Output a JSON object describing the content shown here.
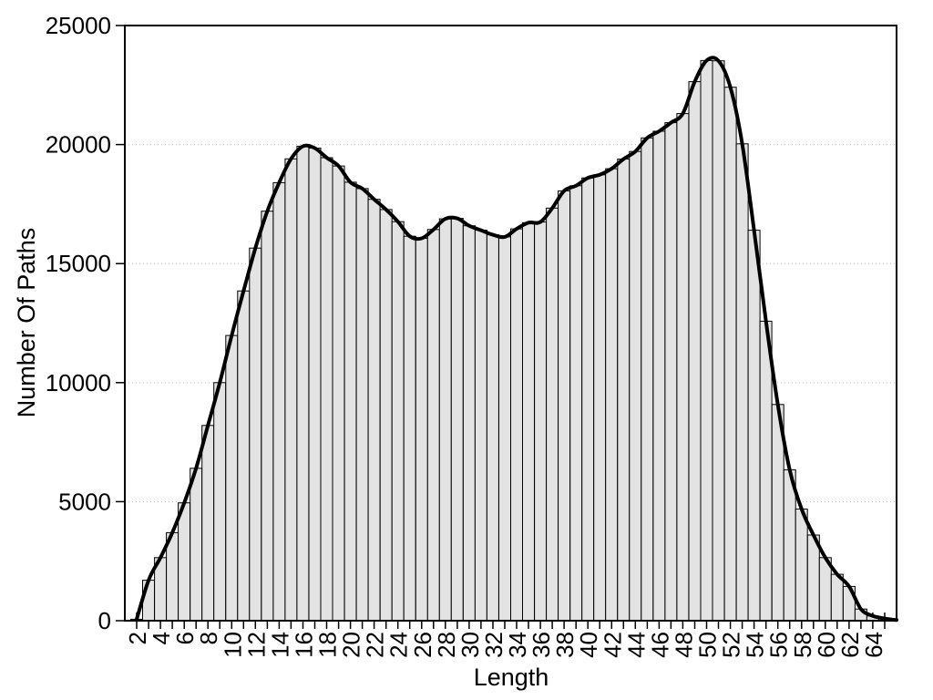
{
  "chart_data": {
    "type": "bar",
    "subtype": "histogram-with-smooth-curve",
    "title": "",
    "xlabel": "Length",
    "ylabel": "Number Of Paths",
    "x": [
      2,
      3,
      4,
      5,
      6,
      7,
      8,
      9,
      10,
      11,
      12,
      13,
      14,
      15,
      16,
      17,
      18,
      19,
      20,
      21,
      22,
      23,
      24,
      25,
      26,
      27,
      28,
      29,
      30,
      31,
      32,
      33,
      34,
      35,
      36,
      37,
      38,
      39,
      40,
      41,
      42,
      43,
      44,
      45,
      46,
      47,
      48,
      49,
      50,
      51,
      52,
      53,
      54,
      55,
      56,
      57,
      58,
      59,
      60,
      61,
      62,
      63,
      64,
      65
    ],
    "values": [
      60,
      1700,
      2650,
      3700,
      4950,
      6400,
      8200,
      10000,
      11980,
      13850,
      15650,
      17200,
      18400,
      19400,
      19930,
      19850,
      19450,
      19100,
      18420,
      18150,
      17700,
      17270,
      16760,
      16150,
      16060,
      16430,
      16880,
      16900,
      16590,
      16400,
      16210,
      16120,
      16460,
      16720,
      16745,
      17330,
      18055,
      18270,
      18600,
      18730,
      18985,
      19390,
      19710,
      20280,
      20560,
      20920,
      21300,
      22640,
      23530,
      23520,
      22410,
      20030,
      16400,
      12580,
      9080,
      6340,
      4690,
      3600,
      2650,
      1950,
      1440,
      490,
      200,
      90
    ],
    "series": [
      {
        "name": "path-count-histogram",
        "style": "bars",
        "fill": "#e3e3e3",
        "stroke": "#000000"
      },
      {
        "name": "smoothed-curve",
        "style": "line",
        "color": "#000000",
        "width": 4
      }
    ],
    "xlim": [
      1,
      66
    ],
    "ylim": [
      0,
      25000
    ],
    "yticks": [
      0,
      5000,
      10000,
      15000,
      20000,
      25000
    ],
    "ytick_labels": [
      "0",
      "5000",
      "10000",
      "15000",
      "20000",
      "25000"
    ],
    "xtick_labels": [
      2,
      4,
      6,
      8,
      10,
      12,
      14,
      16,
      18,
      20,
      22,
      24,
      26,
      28,
      30,
      32,
      34,
      36,
      38,
      40,
      42,
      44,
      46,
      48,
      50,
      52,
      54,
      56,
      58,
      60,
      62,
      64
    ],
    "x_minor_tick_every": 1,
    "xtick_label_rotation_deg": -90,
    "grid": {
      "horizontal": true,
      "vertical": false,
      "style": "dotted",
      "color": "#bdbdbd"
    },
    "legend": "none",
    "colors": {
      "background": "#ffffff",
      "bar_fill": "#e3e3e3",
      "bar_stroke": "#000000",
      "line": "#000000",
      "grid": "#bdbdbd",
      "text": "#000000",
      "frame": "#000000"
    }
  }
}
